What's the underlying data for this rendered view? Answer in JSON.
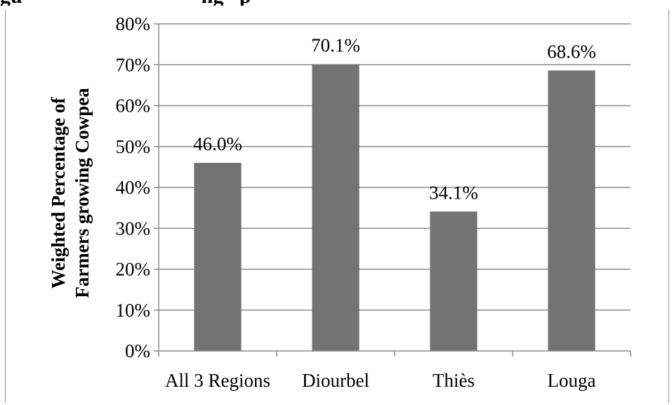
{
  "header_fragment": "gu                                  ng   p",
  "chart_data": {
    "type": "bar",
    "categories": [
      "All 3 Regions",
      "Diourbel",
      "Thiès",
      "Louga"
    ],
    "values": [
      46.0,
      70.1,
      34.1,
      68.6
    ],
    "data_labels": [
      "46.0%",
      "70.1%",
      "34.1%",
      "68.6%"
    ],
    "ylabel": "Weighted Percentage of Farmers growing Cowpea",
    "ylabel_lines": [
      "Weighted Percentage of",
      "Farmers growing Cowpea"
    ],
    "ylim": [
      0,
      80
    ],
    "yticks": [
      0,
      10,
      20,
      30,
      40,
      50,
      60,
      70,
      80
    ],
    "ytick_labels": [
      "0%",
      "10%",
      "20%",
      "30%",
      "40%",
      "50%",
      "60%",
      "70%",
      "80%"
    ],
    "grid": true,
    "bar_color": "#737373",
    "grid_color": "#8c8c8c"
  }
}
